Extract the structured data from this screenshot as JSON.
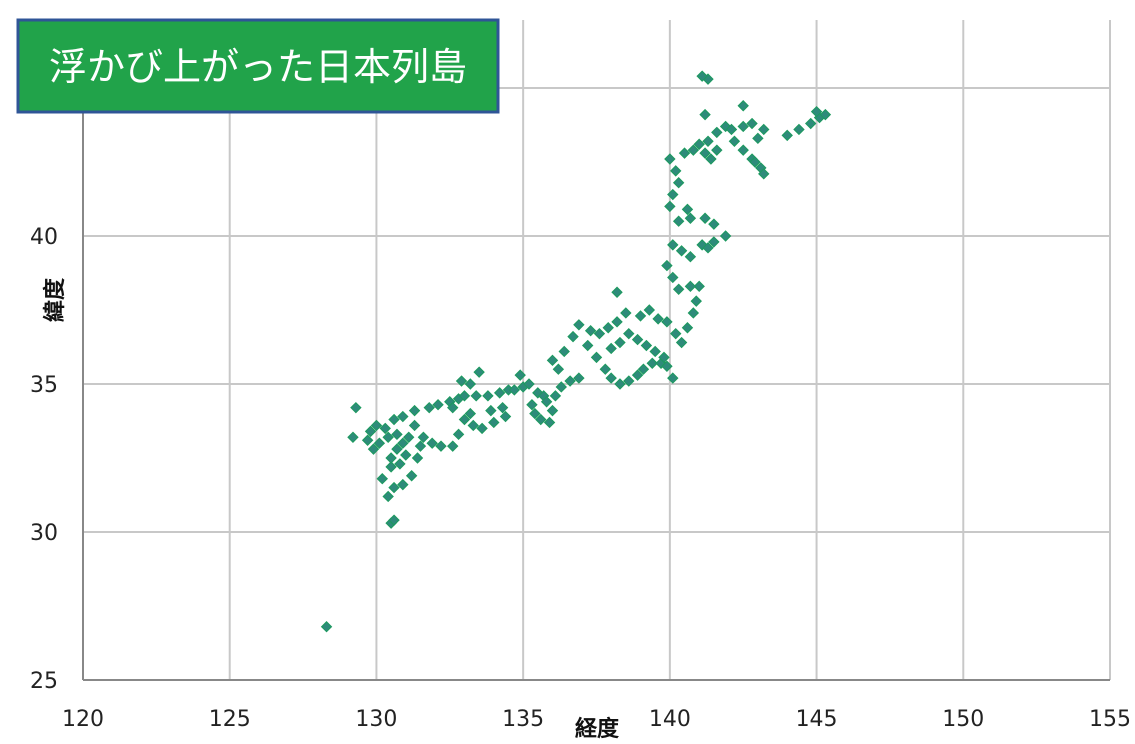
{
  "chart_data": {
    "type": "scatter",
    "title": "浮かび上がった日本列島",
    "xlabel": "経度",
    "ylabel": "緯度",
    "xlim": [
      120,
      155
    ],
    "ylim": [
      25,
      45
    ],
    "x_ticks": [
      "120",
      "125",
      "130",
      "135",
      "140",
      "145",
      "150",
      "155"
    ],
    "y_ticks": [
      "25",
      "30",
      "35",
      "40"
    ],
    "grid": true,
    "marker": "diamond",
    "colors": {
      "marker_fill": "#2e8b7a",
      "marker_edge": "#1c9a5e",
      "title_bg": "#21a34a",
      "title_border": "#2f5597"
    },
    "series": [
      {
        "points": [
          [
            128.3,
            26.8
          ],
          [
            130.5,
            30.3
          ],
          [
            130.6,
            30.4
          ],
          [
            130.4,
            31.2
          ],
          [
            130.6,
            31.5
          ],
          [
            130.9,
            31.6
          ],
          [
            131.2,
            31.9
          ],
          [
            130.2,
            31.8
          ],
          [
            130.5,
            32.2
          ],
          [
            129.3,
            34.2
          ],
          [
            129.2,
            33.2
          ],
          [
            129.7,
            33.1
          ],
          [
            129.9,
            32.8
          ],
          [
            130.1,
            33.0
          ],
          [
            129.8,
            33.4
          ],
          [
            130.0,
            33.6
          ],
          [
            130.3,
            33.5
          ],
          [
            130.4,
            33.2
          ],
          [
            130.7,
            33.3
          ],
          [
            130.9,
            33.0
          ],
          [
            131.1,
            33.2
          ],
          [
            131.3,
            33.6
          ],
          [
            131.6,
            33.2
          ],
          [
            131.5,
            32.9
          ],
          [
            131.0,
            32.6
          ],
          [
            130.7,
            32.8
          ],
          [
            130.5,
            32.5
          ],
          [
            130.8,
            32.3
          ],
          [
            131.4,
            32.5
          ],
          [
            131.9,
            33.0
          ],
          [
            132.2,
            32.9
          ],
          [
            130.6,
            33.8
          ],
          [
            130.9,
            33.9
          ],
          [
            131.3,
            34.1
          ],
          [
            131.8,
            34.2
          ],
          [
            132.1,
            34.3
          ],
          [
            132.5,
            34.4
          ],
          [
            132.8,
            34.5
          ],
          [
            132.6,
            34.2
          ],
          [
            133.0,
            34.6
          ],
          [
            133.4,
            34.6
          ],
          [
            133.8,
            34.6
          ],
          [
            134.2,
            34.7
          ],
          [
            134.5,
            34.8
          ],
          [
            133.2,
            35.0
          ],
          [
            133.5,
            35.4
          ],
          [
            132.9,
            35.1
          ],
          [
            133.0,
            33.8
          ],
          [
            133.3,
            33.6
          ],
          [
            133.6,
            33.5
          ],
          [
            134.0,
            33.7
          ],
          [
            134.4,
            33.9
          ],
          [
            133.9,
            34.1
          ],
          [
            133.2,
            34.0
          ],
          [
            132.8,
            33.3
          ],
          [
            132.6,
            32.9
          ],
          [
            134.3,
            34.2
          ],
          [
            134.7,
            34.8
          ],
          [
            135.0,
            34.9
          ],
          [
            134.9,
            35.3
          ],
          [
            135.2,
            35.0
          ],
          [
            135.5,
            34.7
          ],
          [
            135.7,
            34.6
          ],
          [
            135.3,
            34.3
          ],
          [
            135.4,
            34.0
          ],
          [
            135.6,
            33.8
          ],
          [
            135.9,
            33.7
          ],
          [
            136.0,
            34.1
          ],
          [
            135.8,
            34.4
          ],
          [
            136.1,
            34.6
          ],
          [
            136.3,
            34.9
          ],
          [
            136.6,
            35.1
          ],
          [
            136.9,
            35.2
          ],
          [
            136.2,
            35.5
          ],
          [
            136.0,
            35.8
          ],
          [
            136.4,
            36.1
          ],
          [
            136.7,
            36.6
          ],
          [
            136.9,
            37.0
          ],
          [
            137.3,
            36.8
          ],
          [
            137.6,
            36.7
          ],
          [
            137.2,
            36.3
          ],
          [
            137.5,
            35.9
          ],
          [
            137.8,
            35.5
          ],
          [
            138.0,
            35.2
          ],
          [
            138.3,
            35.0
          ],
          [
            138.6,
            35.1
          ],
          [
            138.9,
            35.3
          ],
          [
            139.1,
            35.5
          ],
          [
            139.4,
            35.7
          ],
          [
            139.7,
            35.7
          ],
          [
            139.9,
            35.6
          ],
          [
            140.1,
            35.2
          ],
          [
            139.8,
            35.9
          ],
          [
            139.5,
            36.1
          ],
          [
            139.2,
            36.3
          ],
          [
            138.9,
            36.5
          ],
          [
            138.6,
            36.7
          ],
          [
            138.3,
            36.4
          ],
          [
            138.0,
            36.2
          ],
          [
            137.9,
            36.9
          ],
          [
            138.2,
            37.1
          ],
          [
            138.5,
            37.4
          ],
          [
            138.2,
            38.1
          ],
          [
            139.0,
            37.3
          ],
          [
            139.3,
            37.5
          ],
          [
            139.6,
            37.2
          ],
          [
            139.9,
            37.1
          ],
          [
            140.2,
            36.7
          ],
          [
            140.4,
            36.4
          ],
          [
            140.6,
            36.9
          ],
          [
            140.8,
            37.4
          ],
          [
            140.9,
            37.8
          ],
          [
            141.0,
            38.3
          ],
          [
            140.7,
            38.3
          ],
          [
            140.3,
            38.2
          ],
          [
            140.1,
            38.6
          ],
          [
            139.9,
            39.0
          ],
          [
            140.1,
            39.7
          ],
          [
            140.4,
            39.5
          ],
          [
            140.7,
            39.3
          ],
          [
            141.1,
            39.7
          ],
          [
            141.3,
            39.6
          ],
          [
            141.5,
            39.8
          ],
          [
            141.9,
            40.0
          ],
          [
            141.5,
            40.4
          ],
          [
            141.2,
            40.6
          ],
          [
            140.7,
            40.6
          ],
          [
            140.3,
            40.5
          ],
          [
            140.6,
            40.9
          ],
          [
            140.0,
            41.0
          ],
          [
            140.1,
            41.4
          ],
          [
            140.3,
            41.8
          ],
          [
            140.2,
            42.2
          ],
          [
            140.0,
            42.6
          ],
          [
            140.5,
            42.8
          ],
          [
            140.8,
            42.9
          ],
          [
            141.2,
            42.8
          ],
          [
            141.4,
            42.6
          ],
          [
            141.6,
            42.9
          ],
          [
            141.0,
            43.1
          ],
          [
            141.3,
            43.2
          ],
          [
            141.6,
            43.5
          ],
          [
            141.9,
            43.7
          ],
          [
            141.2,
            44.1
          ],
          [
            141.3,
            45.3
          ],
          [
            141.1,
            45.4
          ],
          [
            142.1,
            43.6
          ],
          [
            142.5,
            43.7
          ],
          [
            142.8,
            43.8
          ],
          [
            142.5,
            44.4
          ],
          [
            143.2,
            43.6
          ],
          [
            143.0,
            43.3
          ],
          [
            142.5,
            42.9
          ],
          [
            142.8,
            42.6
          ],
          [
            143.1,
            42.3
          ],
          [
            143.2,
            42.1
          ],
          [
            142.9,
            42.5
          ],
          [
            142.2,
            43.2
          ],
          [
            144.0,
            43.4
          ],
          [
            144.4,
            43.6
          ],
          [
            144.8,
            43.8
          ],
          [
            145.1,
            44.0
          ],
          [
            145.3,
            44.1
          ],
          [
            145.0,
            44.2
          ]
        ]
      }
    ]
  }
}
